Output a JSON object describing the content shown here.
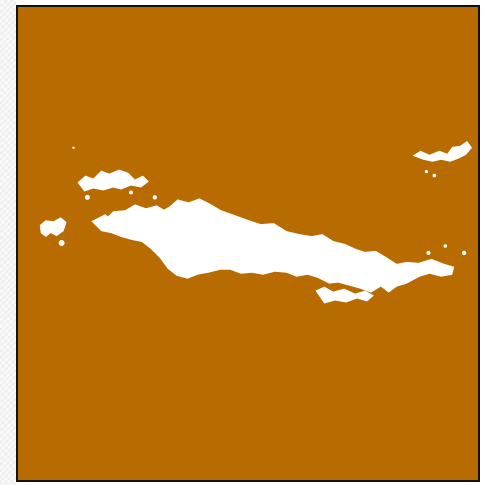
{
  "map": {
    "background_color": "#b86b00",
    "mask_color": "#ffffff",
    "border_color": "#111111"
  }
}
